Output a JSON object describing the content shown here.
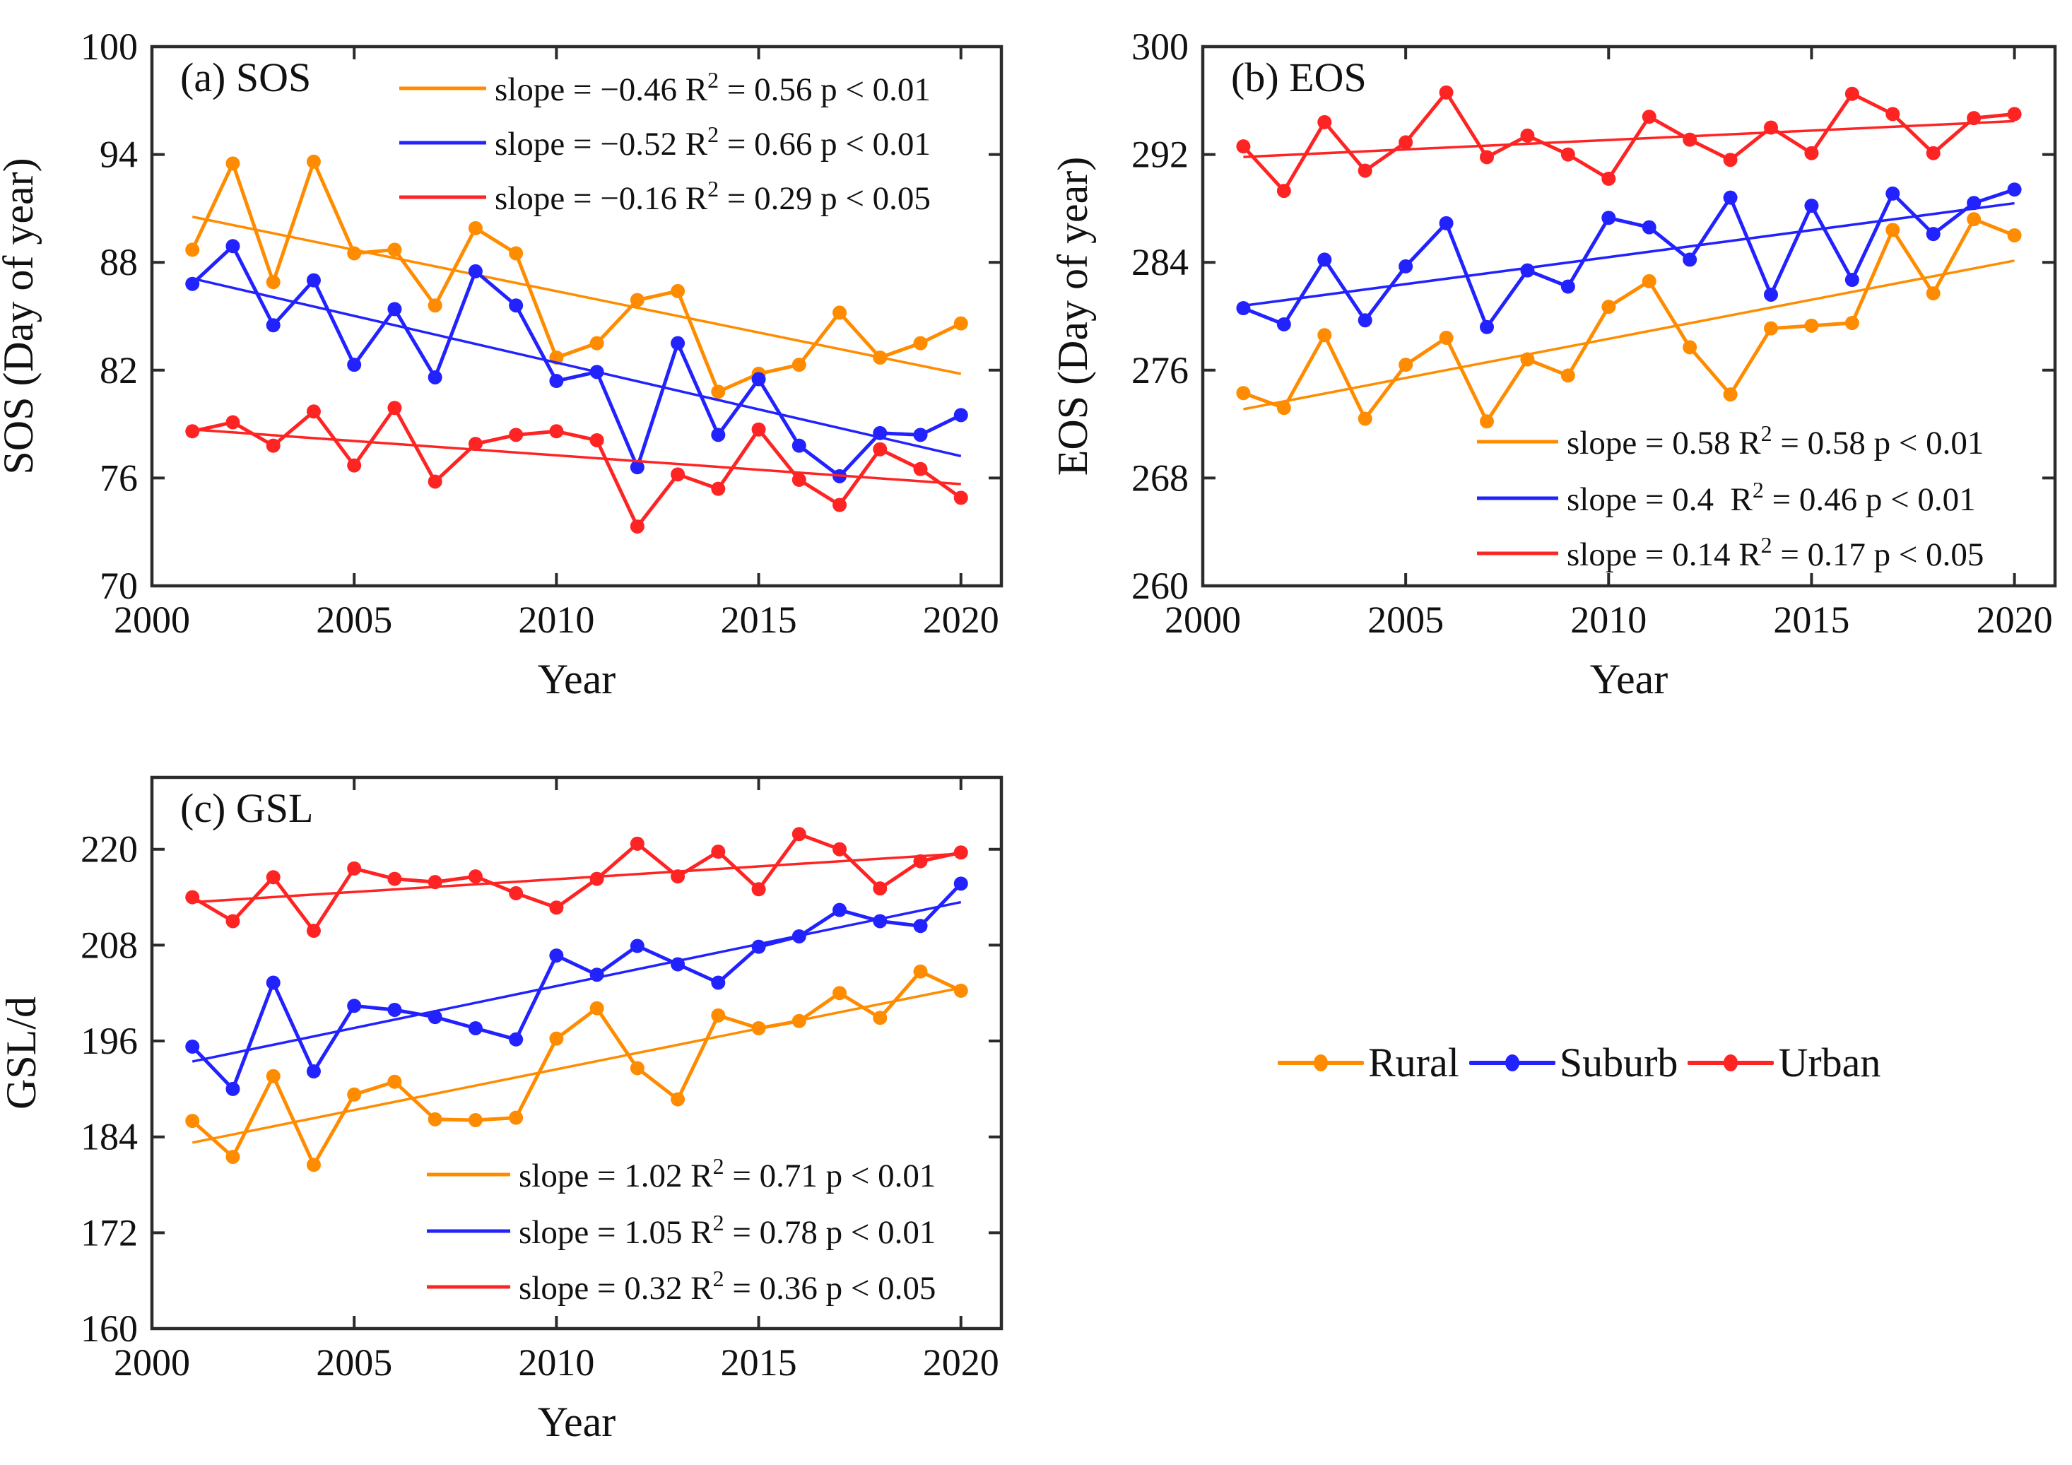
{
  "figure": {
    "background": "#ffffff",
    "axis_color": "#2b2b2b",
    "text_color": "#111111"
  },
  "legend": {
    "items": [
      {
        "label": "Rural",
        "color": "#FF8C00"
      },
      {
        "label": "Suburb",
        "color": "#2222FF"
      },
      {
        "label": "Urban",
        "color": "#FF2424"
      }
    ]
  },
  "chart_data": [
    {
      "id": "sos",
      "type": "line",
      "title": "(a) SOS",
      "xlabel": "Year",
      "ylabel": "SOS (Day of year)",
      "xlim": [
        2000,
        2021
      ],
      "ylim": [
        70,
        100
      ],
      "xticks": [
        2000,
        2005,
        2010,
        2015,
        2020
      ],
      "yticks": [
        70,
        76,
        82,
        88,
        94,
        100
      ],
      "x": [
        2001,
        2002,
        2003,
        2004,
        2005,
        2006,
        2007,
        2008,
        2009,
        2010,
        2011,
        2012,
        2013,
        2014,
        2015,
        2016,
        2017,
        2018,
        2019,
        2020
      ],
      "legend_position": "top-right-inside",
      "series": [
        {
          "name": "Rural",
          "color": "#FF8C00",
          "values": [
            88.7,
            93.5,
            86.9,
            93.6,
            88.5,
            88.7,
            85.6,
            89.9,
            88.5,
            82.7,
            83.5,
            85.9,
            86.4,
            80.8,
            81.8,
            82.3,
            85.2,
            82.7,
            83.5,
            84.6
          ],
          "trend_slope": -0.46,
          "stat": {
            "slope": "−0.46",
            "r2": "0.56",
            "p": "p < 0.01"
          }
        },
        {
          "name": "Suburb",
          "color": "#2222FF",
          "values": [
            86.8,
            88.9,
            84.5,
            87.0,
            82.3,
            85.4,
            81.6,
            87.5,
            85.6,
            81.4,
            81.9,
            76.6,
            83.5,
            78.4,
            81.5,
            77.8,
            76.1,
            78.5,
            78.4,
            79.5
          ],
          "trend_slope": -0.52,
          "stat": {
            "slope": "−0.52",
            "r2": "0.66",
            "p": "p < 0.01"
          }
        },
        {
          "name": "Urban",
          "color": "#FF2424",
          "values": [
            78.6,
            79.1,
            77.8,
            79.7,
            76.7,
            79.9,
            75.8,
            77.9,
            78.4,
            78.6,
            78.1,
            73.3,
            76.2,
            75.4,
            78.7,
            75.9,
            74.5,
            77.6,
            76.5,
            74.9
          ],
          "trend_slope": -0.16,
          "stat": {
            "slope": "−0.16",
            "r2": "0.29",
            "p": "p < 0.05"
          }
        }
      ]
    },
    {
      "id": "eos",
      "type": "line",
      "title": "(b) EOS",
      "xlabel": "Year",
      "ylabel": "EOS (Day of year)",
      "xlim": [
        2000,
        2021
      ],
      "ylim": [
        260,
        300
      ],
      "xticks": [
        2000,
        2005,
        2010,
        2015,
        2020
      ],
      "yticks": [
        260,
        268,
        276,
        284,
        292,
        300
      ],
      "x": [
        2001,
        2002,
        2003,
        2004,
        2005,
        2006,
        2007,
        2008,
        2009,
        2010,
        2011,
        2012,
        2013,
        2014,
        2015,
        2016,
        2017,
        2018,
        2019,
        2020
      ],
      "legend_position": "bottom-right-inside",
      "series": [
        {
          "name": "Rural",
          "color": "#FF8C00",
          "values": [
            274.3,
            273.2,
            278.6,
            272.4,
            276.4,
            278.4,
            272.2,
            276.8,
            275.6,
            280.7,
            282.6,
            277.7,
            274.2,
            279.1,
            279.3,
            279.5,
            286.4,
            281.7,
            287.2,
            286.0
          ],
          "trend_slope": 0.58,
          "stat": {
            "slope": "0.58",
            "r2": "0.58",
            "p": "p < 0.01"
          }
        },
        {
          "name": "Suburb",
          "color": "#2222FF",
          "values": [
            280.6,
            279.4,
            284.2,
            279.7,
            283.7,
            286.9,
            279.2,
            283.4,
            282.2,
            287.3,
            286.6,
            284.2,
            288.8,
            281.6,
            288.2,
            282.7,
            289.1,
            286.1,
            288.4,
            289.4
          ],
          "trend_slope": 0.4,
          "stat": {
            "slope": "0.4 ",
            "r2": "0.46",
            "p": "p < 0.01"
          }
        },
        {
          "name": "Urban",
          "color": "#FF2424",
          "values": [
            292.6,
            289.3,
            294.4,
            290.8,
            292.9,
            296.6,
            291.8,
            293.4,
            292.0,
            290.2,
            294.8,
            293.1,
            291.6,
            294.0,
            292.1,
            296.5,
            295.0,
            292.1,
            294.7,
            295.0
          ],
          "trend_slope": 0.14,
          "stat": {
            "slope": "0.14",
            "r2": "0.17",
            "p": "p < 0.05"
          }
        }
      ]
    },
    {
      "id": "gsl",
      "type": "line",
      "title": "(c) GSL",
      "xlabel": "Year",
      "ylabel": "GSL/d",
      "xlim": [
        2000,
        2021
      ],
      "ylim": [
        160,
        229
      ],
      "xticks": [
        2000,
        2005,
        2010,
        2015,
        2020
      ],
      "yticks": [
        160,
        172,
        184,
        196,
        208,
        220
      ],
      "x": [
        2001,
        2002,
        2003,
        2004,
        2005,
        2006,
        2007,
        2008,
        2009,
        2010,
        2011,
        2012,
        2013,
        2014,
        2015,
        2016,
        2017,
        2018,
        2019,
        2020
      ],
      "legend_position": "bottom-right-inside",
      "series": [
        {
          "name": "Rural",
          "color": "#FF8C00",
          "values": [
            186.0,
            181.5,
            191.6,
            180.5,
            189.3,
            190.9,
            186.2,
            186.1,
            186.4,
            196.3,
            200.1,
            192.6,
            188.7,
            199.2,
            197.6,
            198.5,
            202.0,
            198.9,
            204.7,
            202.3
          ],
          "trend_slope": 1.02,
          "stat": {
            "slope": "1.02",
            "r2": "0.71",
            "p": "p < 0.01"
          }
        },
        {
          "name": "Suburb",
          "color": "#2222FF",
          "values": [
            195.3,
            190.0,
            203.3,
            192.2,
            200.4,
            199.9,
            199.0,
            197.6,
            196.2,
            206.7,
            204.3,
            207.9,
            205.6,
            203.3,
            207.8,
            209.1,
            212.4,
            211.0,
            210.4,
            215.7
          ],
          "trend_slope": 1.05,
          "stat": {
            "slope": "1.05",
            "r2": "0.78",
            "p": "p < 0.01"
          }
        },
        {
          "name": "Urban",
          "color": "#FF2424",
          "values": [
            214.0,
            211.0,
            216.5,
            209.8,
            217.6,
            216.3,
            215.9,
            216.6,
            214.5,
            212.7,
            216.3,
            220.7,
            216.6,
            219.7,
            215.0,
            221.9,
            220.0,
            215.1,
            218.5,
            219.6
          ],
          "trend_slope": 0.32,
          "stat": {
            "slope": "0.32",
            "r2": "0.36",
            "p": "p < 0.05"
          }
        }
      ]
    }
  ]
}
